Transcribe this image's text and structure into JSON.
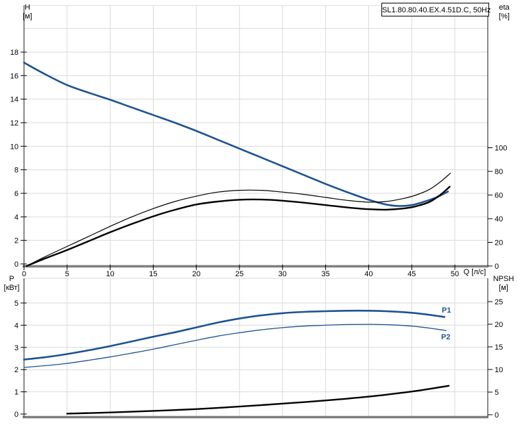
{
  "header": {
    "title": "SL1.80.80.40.EX.4.51D.C, 50Hz"
  },
  "axis_titles": {
    "h": "H",
    "h_unit": "[м]",
    "eta": "eta",
    "eta_unit": "[%]",
    "q": "Q [л/с]",
    "p": "P",
    "p_unit": "[кВт]",
    "npsh": "NPSH",
    "npsh_unit": "[м]"
  },
  "curve_labels": {
    "p1": "P1",
    "p2": "P2"
  },
  "colors": {
    "blue": "#1d5391",
    "black": "#000000",
    "grid": "#d9d9d9",
    "axis": "#3c3c3c",
    "baseline": "#7f7f7f"
  },
  "chart_data": [
    {
      "id": "hq-eta",
      "type": "line",
      "title": "SL1.80.80.40.EX.4.51D.C, 50Hz",
      "xlabel": "Q [л/с]",
      "ylabel_left": "H [м]",
      "ylabel_right": "eta [%]",
      "x_ticks": [
        0,
        5,
        10,
        15,
        20,
        25,
        30,
        35,
        40,
        45,
        50
      ],
      "y_left_ticks": [
        0,
        2,
        4,
        6,
        8,
        10,
        12,
        14,
        16,
        18
      ],
      "y_right_ticks": [
        0,
        20,
        40,
        60,
        80,
        100
      ],
      "y_gridlines": [
        2,
        4,
        6,
        8,
        10,
        12,
        14,
        16,
        18,
        20
      ],
      "grid": true,
      "series": [
        {
          "name": "H",
          "axis": "left",
          "color": "#1d5391",
          "width": 2.6,
          "points": [
            [
              0,
              17.1
            ],
            [
              2.5,
              16.1
            ],
            [
              5,
              15.2
            ],
            [
              7.5,
              14.55
            ],
            [
              10,
              13.95
            ],
            [
              12.5,
              13.3
            ],
            [
              15,
              12.65
            ],
            [
              17.5,
              12.0
            ],
            [
              20,
              11.3
            ],
            [
              22.5,
              10.55
            ],
            [
              25,
              9.8
            ],
            [
              27.5,
              9.05
            ],
            [
              30,
              8.3
            ],
            [
              32.5,
              7.55
            ],
            [
              35,
              6.8
            ],
            [
              37.5,
              6.1
            ],
            [
              40,
              5.45
            ],
            [
              42,
              5.05
            ],
            [
              43.5,
              4.92
            ],
            [
              45,
              5.0
            ],
            [
              46.5,
              5.3
            ],
            [
              48,
              5.7
            ],
            [
              49.2,
              6.15
            ]
          ]
        },
        {
          "name": "eta-pump",
          "axis": "right",
          "color": "#000000",
          "width": 1.2,
          "points": [
            [
              0.3,
              0
            ],
            [
              2.5,
              8
            ],
            [
              5,
              16.5
            ],
            [
              7.5,
              25
            ],
            [
              10,
              33.5
            ],
            [
              12.5,
              41.5
            ],
            [
              15,
              48.5
            ],
            [
              17.5,
              54.5
            ],
            [
              20,
              59
            ],
            [
              22.5,
              62.5
            ],
            [
              25,
              64
            ],
            [
              27.5,
              64
            ],
            [
              30,
              62.5
            ],
            [
              32.5,
              60.5
            ],
            [
              35,
              58
            ],
            [
              37.5,
              55.5
            ],
            [
              40,
              54
            ],
            [
              42,
              54.5
            ],
            [
              44,
              57
            ],
            [
              45.5,
              60
            ],
            [
              47,
              64.5
            ],
            [
              48.3,
              71
            ],
            [
              49.5,
              78.5
            ]
          ]
        },
        {
          "name": "eta-pump-motor",
          "axis": "right",
          "color": "#000000",
          "width": 2.4,
          "points": [
            [
              0.3,
              0
            ],
            [
              2.5,
              6.5
            ],
            [
              5,
              13.5
            ],
            [
              7.5,
              21
            ],
            [
              10,
              28.5
            ],
            [
              12.5,
              35.5
            ],
            [
              15,
              42
            ],
            [
              17.5,
              47.5
            ],
            [
              20,
              52
            ],
            [
              22.5,
              54.5
            ],
            [
              25,
              56
            ],
            [
              27.5,
              56.2
            ],
            [
              30,
              55.2
            ],
            [
              32.5,
              53.5
            ],
            [
              35,
              51.5
            ],
            [
              37.5,
              49.5
            ],
            [
              40,
              48
            ],
            [
              42,
              47.6
            ],
            [
              44,
              48.6
            ],
            [
              45.5,
              50.5
            ],
            [
              47,
              54
            ],
            [
              48.3,
              60
            ],
            [
              49.4,
              67
            ]
          ]
        }
      ]
    },
    {
      "id": "p-npsh",
      "type": "line",
      "xlabel": "Q [л/с]",
      "ylabel_left": "P [кВт]",
      "ylabel_right": "NPSH [м]",
      "x_ticks": [
        0,
        5,
        10,
        15,
        20,
        25,
        30,
        35,
        40,
        45,
        50
      ],
      "y_left_ticks": [
        0,
        1,
        2,
        3,
        4,
        5
      ],
      "y_right_ticks": [
        0,
        5,
        10,
        15,
        20,
        25
      ],
      "y_gridlines": [
        1,
        2,
        3,
        4,
        5
      ],
      "grid": true,
      "series": [
        {
          "name": "P1",
          "axis": "left",
          "color": "#1d5391",
          "width": 2.6,
          "points": [
            [
              0,
              2.45
            ],
            [
              2.5,
              2.56
            ],
            [
              5,
              2.7
            ],
            [
              7.5,
              2.87
            ],
            [
              10,
              3.06
            ],
            [
              12.5,
              3.27
            ],
            [
              15,
              3.48
            ],
            [
              17.5,
              3.68
            ],
            [
              20,
              3.9
            ],
            [
              22.5,
              4.12
            ],
            [
              25,
              4.3
            ],
            [
              27.5,
              4.44
            ],
            [
              30,
              4.54
            ],
            [
              32.5,
              4.6
            ],
            [
              35,
              4.63
            ],
            [
              37.5,
              4.65
            ],
            [
              40,
              4.65
            ],
            [
              42.5,
              4.62
            ],
            [
              45,
              4.56
            ],
            [
              47,
              4.47
            ],
            [
              48.8,
              4.37
            ]
          ]
        },
        {
          "name": "P2",
          "axis": "left",
          "color": "#1d5391",
          "width": 1.3,
          "points": [
            [
              0,
              2.1
            ],
            [
              2.5,
              2.18
            ],
            [
              5,
              2.28
            ],
            [
              7.5,
              2.42
            ],
            [
              10,
              2.57
            ],
            [
              12.5,
              2.74
            ],
            [
              15,
              2.92
            ],
            [
              17.5,
              3.12
            ],
            [
              20,
              3.32
            ],
            [
              22.5,
              3.51
            ],
            [
              25,
              3.66
            ],
            [
              27.5,
              3.79
            ],
            [
              30,
              3.89
            ],
            [
              32.5,
              3.96
            ],
            [
              35,
              4.0
            ],
            [
              37.5,
              4.03
            ],
            [
              40,
              4.04
            ],
            [
              42.5,
              4.02
            ],
            [
              45,
              3.96
            ],
            [
              47,
              3.87
            ],
            [
              49,
              3.76
            ]
          ]
        },
        {
          "name": "NPSH",
          "axis": "right",
          "color": "#000000",
          "width": 2.4,
          "points": [
            [
              5,
              0.25
            ],
            [
              10,
              0.5
            ],
            [
              15,
              0.85
            ],
            [
              20,
              1.25
            ],
            [
              25,
              1.8
            ],
            [
              30,
              2.45
            ],
            [
              35,
              3.15
            ],
            [
              40,
              4.0
            ],
            [
              43,
              4.65
            ],
            [
              46,
              5.4
            ],
            [
              49.3,
              6.4
            ]
          ]
        }
      ]
    }
  ]
}
